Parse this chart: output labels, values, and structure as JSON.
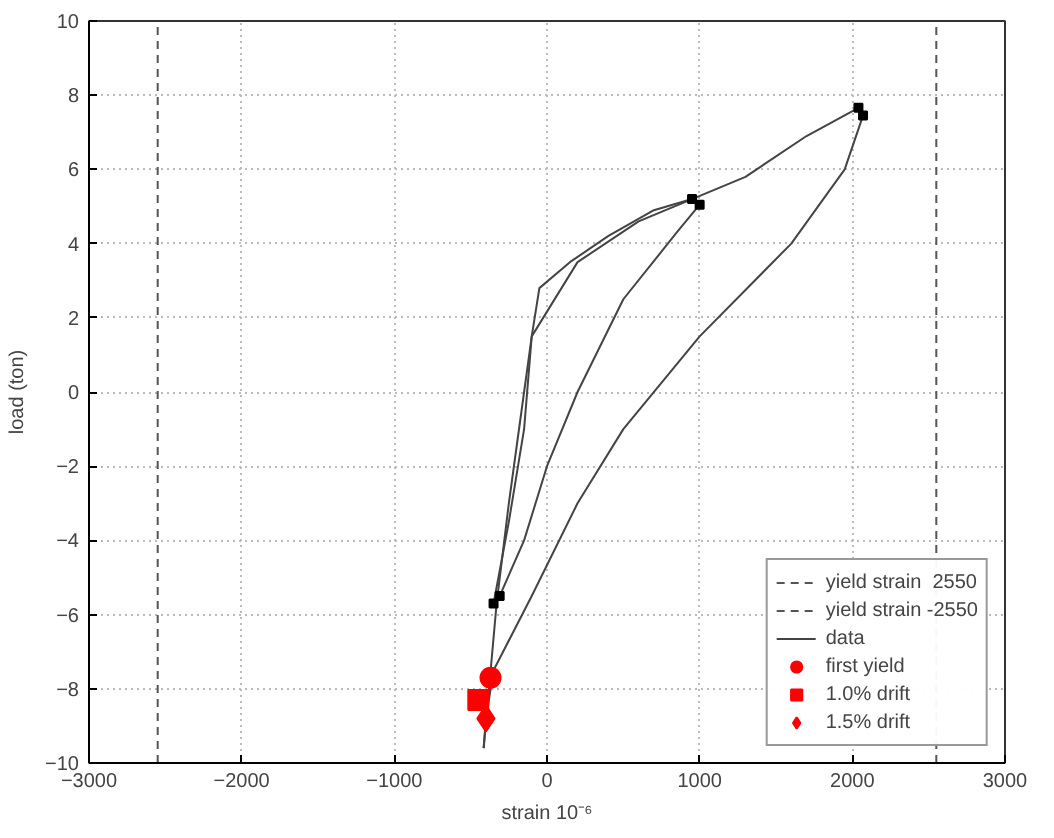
{
  "chart_data": {
    "type": "line",
    "xlabel": "strain 10⁻⁶",
    "ylabel": "load (ton)",
    "xlim": [
      -3000,
      3000
    ],
    "ylim": [
      -10,
      10
    ],
    "xticks": [
      -3000,
      -2000,
      -1000,
      0,
      1000,
      2000,
      3000
    ],
    "yticks": [
      -10,
      -8,
      -6,
      -4,
      -2,
      0,
      2,
      4,
      6,
      8,
      10
    ],
    "grid": true,
    "legend": "bottom right",
    "series": [
      {
        "name": "yield strain  2550",
        "line_style": "dashed",
        "color": "#555555",
        "x": [
          2550,
          2550
        ],
        "values": [
          -10,
          10
        ]
      },
      {
        "name": "yield strain -2550",
        "line_style": "dashed",
        "color": "#555555",
        "x": [
          -2550,
          -2550
        ],
        "values": [
          -10,
          10
        ]
      },
      {
        "name": "data",
        "line_style": "solid",
        "color": "#444444",
        "x": [
          -415,
          -380,
          -330,
          -250,
          -150,
          -100,
          -50,
          150,
          400,
          700,
          950
        ],
        "values": [
          -9.6,
          -8,
          -5.7,
          -3,
          0,
          1.5,
          2.8,
          3.5,
          4.2,
          4.9,
          5.2
        ]
      },
      {
        "line_style": "solid",
        "color": "#444444",
        "x": [
          1000,
          850,
          500,
          200,
          0,
          -150,
          -310,
          -350
        ],
        "values": [
          5.05,
          4.3,
          2.5,
          0,
          -2,
          -4,
          -5.5,
          -5.7
        ]
      },
      {
        "line_style": "solid",
        "color": "#444444",
        "x": [
          -350,
          -250,
          -150,
          -100,
          200,
          600,
          950,
          1300,
          1700,
          2040
        ],
        "values": [
          -5.7,
          -3.5,
          -1,
          1.5,
          3.5,
          4.6,
          5.2,
          5.8,
          6.9,
          7.66
        ]
      },
      {
        "line_style": "solid",
        "color": "#444444",
        "x": [
          2070,
          1950,
          1600,
          1000,
          500,
          200,
          -100,
          -350,
          -400,
          -415
        ],
        "values": [
          7.45,
          6,
          4,
          1.5,
          -1,
          -3,
          -5.5,
          -7.5,
          -8.8,
          -9.6
        ]
      },
      {
        "type": "scatter",
        "marker": "square",
        "color": "#000000",
        "x": [
          -350,
          -310,
          950,
          1000,
          2040,
          2070
        ],
        "values": [
          -5.7,
          -5.5,
          5.2,
          5.05,
          7.66,
          7.45
        ]
      },
      {
        "name": "first yield",
        "type": "scatter",
        "marker": "circle",
        "color": "#ff0000",
        "x": [
          -370
        ],
        "values": [
          -7.7
        ]
      },
      {
        "name": "1.0% drift",
        "type": "scatter",
        "marker": "square",
        "color": "#ff0000",
        "x": [
          -450
        ],
        "values": [
          -8.3
        ]
      },
      {
        "name": "1.5% drift",
        "type": "scatter",
        "marker": "diamond",
        "color": "#ff0000",
        "x": [
          -400
        ],
        "values": [
          -8.8
        ]
      }
    ]
  }
}
